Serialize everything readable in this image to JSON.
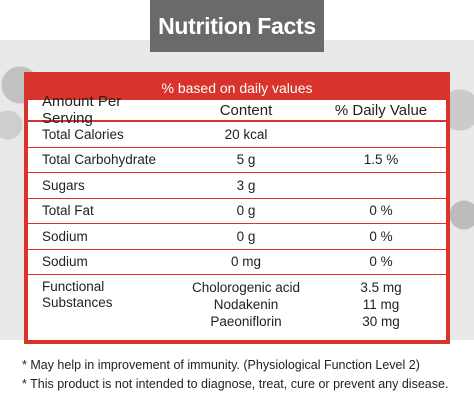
{
  "title": "Nutrition Facts",
  "table": {
    "header": "% based on daily values",
    "columns": [
      "Amount Per Serving",
      "Content",
      "% Daily Value"
    ],
    "rows": [
      {
        "name": "Total Calories",
        "content": "20 kcal",
        "daily": ""
      },
      {
        "name": "Total Carbohydrate",
        "content": "5 g",
        "daily": "1.5 %"
      },
      {
        "name": "Sugars",
        "content": "3 g",
        "daily": ""
      },
      {
        "name": "Total Fat",
        "content": "0 g",
        "daily": "0 %"
      },
      {
        "name": "Sodium",
        "content": "0 g",
        "daily": "0 %"
      },
      {
        "name": "Sodium",
        "content": "0 mg",
        "daily": "0 %"
      }
    ],
    "functional": {
      "name": "Functional Substances",
      "items": [
        {
          "name": "Cholorogenic acid",
          "value": "3.5 mg"
        },
        {
          "name": "Nodakenin",
          "value": "11 mg"
        },
        {
          "name": "Paeoniflorin",
          "value": "30 mg"
        }
      ]
    }
  },
  "notes": [
    "* May help in improvement of immunity. (Physiological Function Level 2)",
    "* This product is not intended to diagnose, treat, cure or prevent any disease."
  ],
  "colors": {
    "accent": "#d9342b",
    "title_bg": "#6a6a6a",
    "band": "#e9e9e9"
  }
}
